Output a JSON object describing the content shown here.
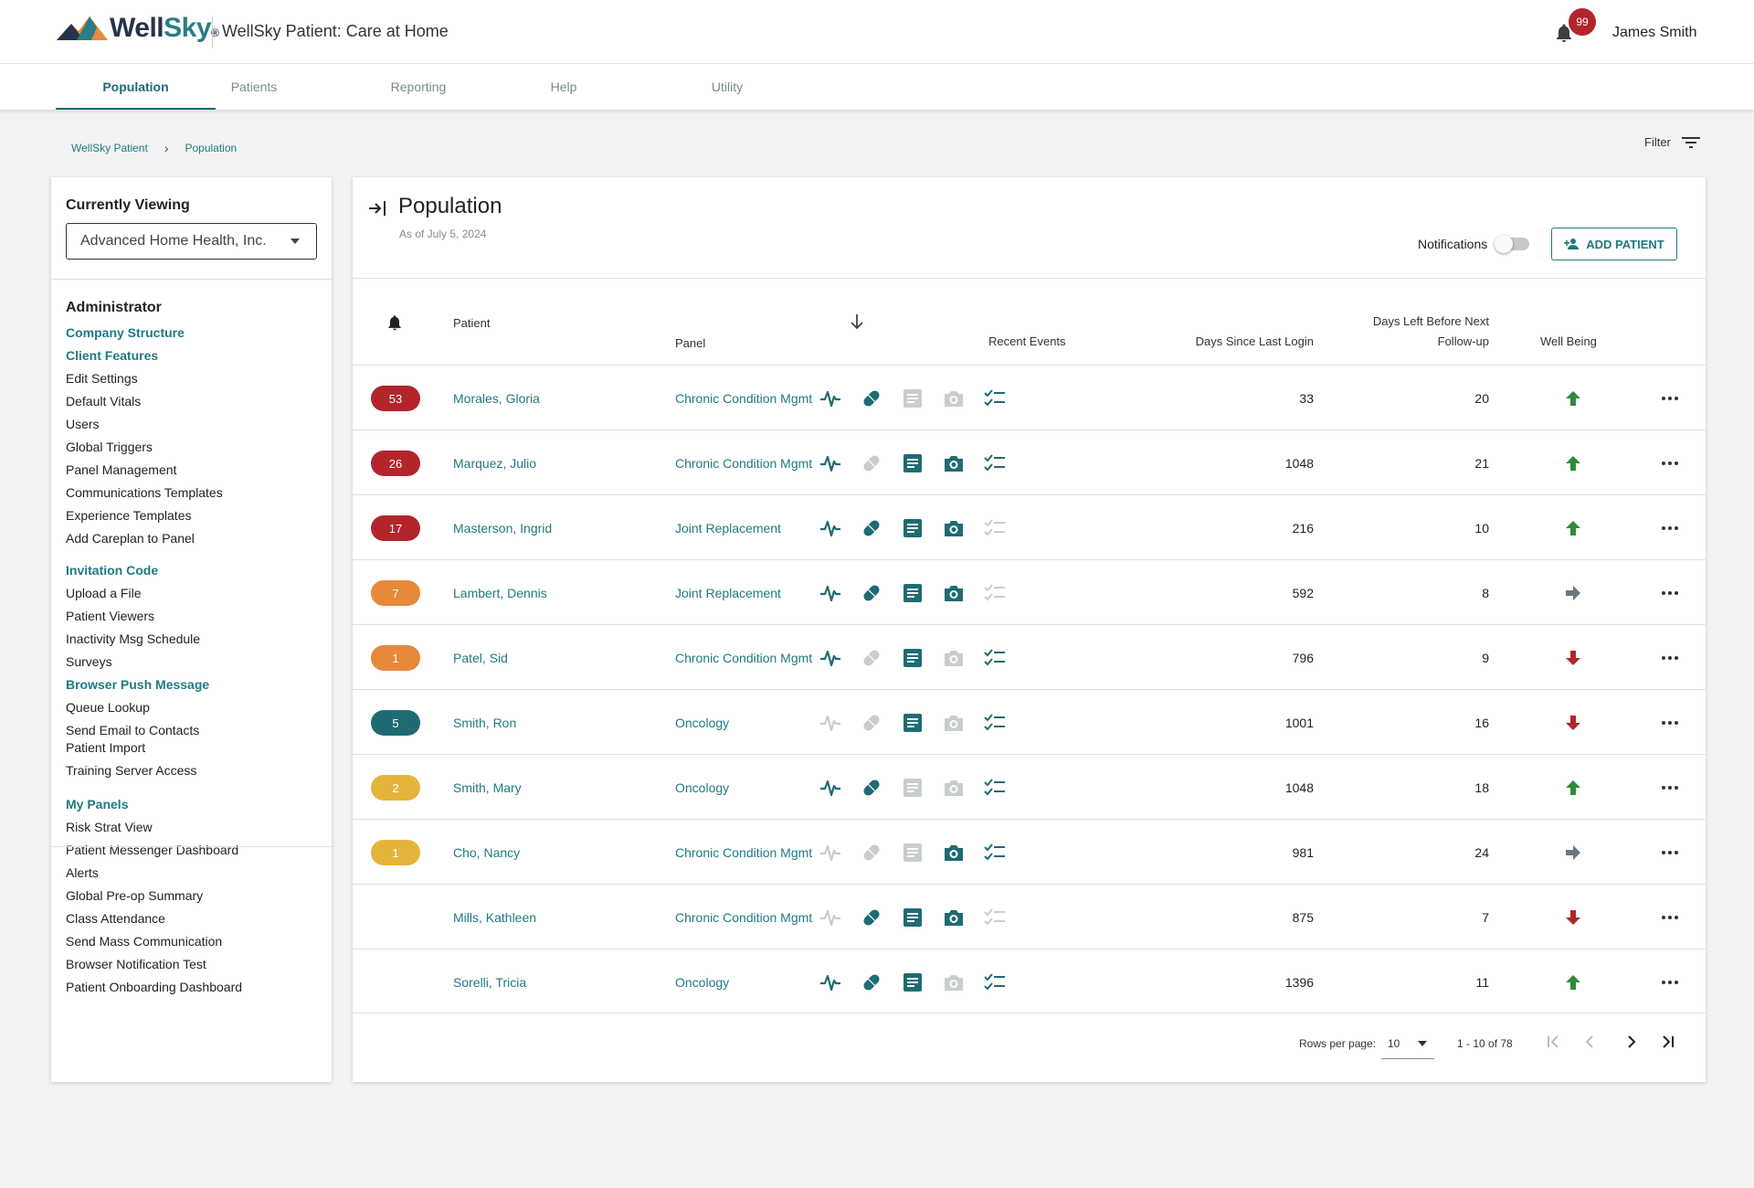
{
  "header": {
    "logo_text_a": "Well",
    "logo_text_b": "Sky",
    "logo_reg": "®",
    "app_title": "WellSky Patient: Care at Home",
    "notification_count": "99",
    "user_name": "James Smith"
  },
  "tabs": [
    {
      "label": "Population",
      "active": true
    },
    {
      "label": "Patients"
    },
    {
      "label": "Reporting"
    },
    {
      "label": "Help"
    },
    {
      "label": "Utility"
    }
  ],
  "breadcrumb": [
    "WellSky Patient",
    "Population"
  ],
  "filter_label": "Filter",
  "sidebar": {
    "currently_viewing_label": "Currently Viewing",
    "currently_viewing_value": "Advanced Home Health, Inc.",
    "administrator_heading": "Administrator",
    "group1": [
      "Company Structure",
      "Client Features",
      "Edit Settings",
      "Default Vitals",
      "Users",
      "Global Triggers",
      "Panel Management",
      "Communications Templates",
      "Experience Templates",
      "Add Careplan to Panel"
    ],
    "group2": [
      "Invitation Code",
      "Upload a File",
      "Patient Viewers",
      "Inactivity Msg Schedule",
      "Surveys",
      "Browser Push Message",
      "Queue Lookup",
      "Send Email to Contacts"
    ],
    "group3": [
      "Patient Import",
      "Training Server Access"
    ],
    "group4": [
      "My Panels",
      "Risk Strat View",
      "Patient Messenger Dashboard",
      "Alerts",
      "Global Pre-op Summary",
      "Class Attendance",
      "Send Mass Communication",
      "Browser Notification Test",
      "Patient Onboarding Dashboard"
    ],
    "link_items": [
      "Company Structure",
      "Client Features",
      "Invitation Code",
      "Browser Push Message",
      "My Panels"
    ]
  },
  "main": {
    "title": "Population",
    "as_of": "As of July 5, 2024",
    "notifications_label": "Notifications",
    "notifications_on": false,
    "add_patient_label": "ADD PATIENT",
    "columns": {
      "patient": "Patient",
      "panel": "Panel",
      "recent_events": "Recent Events",
      "days_since_login": "Days Since Last Login",
      "days_left_line1": "Days Left Before Next",
      "days_left_line2": "Follow-up",
      "well_being": "Well Being"
    },
    "rows": [
      {
        "alerts": "53",
        "alert_color": "#b3242b",
        "patient": "Morales, Gloria",
        "panel": "Chronic Condition Mgmt",
        "events": [
          1,
          1,
          0,
          0,
          1
        ],
        "days_since_login": "33",
        "days_left": "20",
        "well_being": "up"
      },
      {
        "alerts": "26",
        "alert_color": "#b3242b",
        "patient": "Marquez, Julio",
        "panel": "Chronic Condition Mgmt",
        "events": [
          1,
          0,
          1,
          1,
          1
        ],
        "days_since_login": "1048",
        "days_left": "21",
        "well_being": "up"
      },
      {
        "alerts": "17",
        "alert_color": "#b3242b",
        "patient": "Masterson, Ingrid",
        "panel": "Joint Replacement",
        "events": [
          1,
          1,
          1,
          1,
          0
        ],
        "days_since_login": "216",
        "days_left": "10",
        "well_being": "up"
      },
      {
        "alerts": "7",
        "alert_color": "#e8883a",
        "patient": "Lambert, Dennis",
        "panel": "Joint Replacement",
        "events": [
          1,
          1,
          1,
          1,
          0
        ],
        "days_since_login": "592",
        "days_left": "8",
        "well_being": "right"
      },
      {
        "alerts": "1",
        "alert_color": "#e8883a",
        "patient": "Patel, Sid",
        "panel": "Chronic Condition Mgmt",
        "events": [
          1,
          0,
          1,
          0,
          1
        ],
        "days_since_login": "796",
        "days_left": "9",
        "well_being": "down"
      },
      {
        "alerts": "5",
        "alert_color": "#1f6b73",
        "patient": "Smith, Ron",
        "panel": "Oncology",
        "events": [
          0,
          0,
          1,
          0,
          1
        ],
        "days_since_login": "1001",
        "days_left": "16",
        "well_being": "down"
      },
      {
        "alerts": "2",
        "alert_color": "#e3b53c",
        "patient": "Smith, Mary",
        "panel": "Oncology",
        "events": [
          1,
          1,
          0,
          0,
          1
        ],
        "days_since_login": "1048",
        "days_left": "18",
        "well_being": "up"
      },
      {
        "alerts": "1",
        "alert_color": "#e3b53c",
        "patient": "Cho, Nancy",
        "panel": "Chronic Condition Mgmt",
        "events": [
          0,
          0,
          0,
          1,
          1
        ],
        "days_since_login": "981",
        "days_left": "24",
        "well_being": "right"
      },
      {
        "alerts": "",
        "alert_color": "",
        "patient": "Mills, Kathleen",
        "panel": "Chronic Condition Mgmt",
        "events": [
          0,
          1,
          1,
          1,
          0
        ],
        "days_since_login": "875",
        "days_left": "7",
        "well_being": "down"
      },
      {
        "alerts": "",
        "alert_color": "",
        "patient": "Sorelli, Tricia",
        "panel": "Oncology",
        "events": [
          1,
          1,
          1,
          0,
          1
        ],
        "days_since_login": "1396",
        "days_left": "11",
        "well_being": "up"
      }
    ]
  },
  "pagination": {
    "rows_per_page_label": "Rows per page:",
    "rows_per_page": "10",
    "range": "1 - 10 of 78"
  },
  "colors": {
    "teal": "#1f6b73",
    "event_inactive": "#c8cdce",
    "up": "#2e8b3a",
    "down": "#b3242b",
    "flat": "#6b7780"
  },
  "icons": {
    "event_icons": [
      "vitals-icon",
      "medication-icon",
      "notes-icon",
      "camera-icon",
      "checklist-icon"
    ]
  }
}
